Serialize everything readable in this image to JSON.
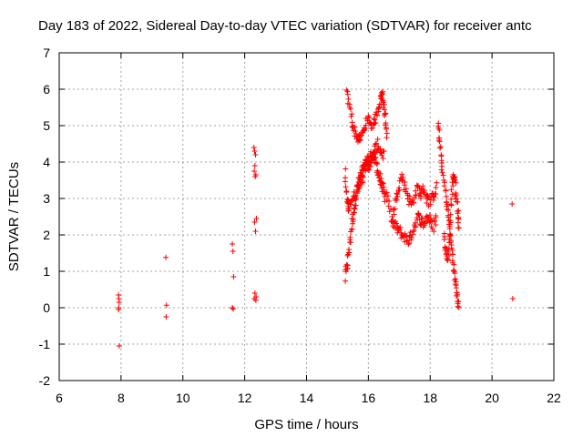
{
  "chart_data": {
    "type": "scatter",
    "title": "Day 183 of 2022, Sidereal Day-to-day VTEC variation (SDTVAR) for receiver antc",
    "xlabel": "GPS time / hours",
    "ylabel": "SDTVAR / TECUs",
    "xlim": [
      6,
      22
    ],
    "ylim": [
      -2,
      7
    ],
    "xticks": [
      "6",
      "8",
      "10",
      "12",
      "14",
      "16",
      "18",
      "20",
      "22"
    ],
    "yticks": [
      "-2",
      "-1",
      "0",
      "1",
      "2",
      "3",
      "4",
      "5",
      "6",
      "7"
    ],
    "grid": true,
    "marker": "plus",
    "color": "#ff0000",
    "series": [
      {
        "name": "SDTVAR",
        "clusters": [
          {
            "x": [
              7.92,
              7.93,
              7.94,
              7.93,
              7.92,
              7.94
            ],
            "y": [
              0.35,
              0.25,
              0.15,
              0.0,
              -0.05,
              -1.05
            ]
          },
          {
            "x": [
              9.45,
              9.47,
              9.46
            ],
            "y": [
              1.38,
              0.07,
              -0.25
            ]
          },
          {
            "x": [
              11.6,
              11.62,
              11.64,
              11.6,
              11.63
            ],
            "y": [
              1.75,
              1.55,
              0.85,
              0.0,
              -0.03
            ]
          },
          {
            "x": [
              12.3,
              12.32,
              12.35,
              12.33,
              12.31,
              12.36,
              12.34,
              12.38,
              12.32,
              12.35,
              12.33,
              12.37,
              12.31,
              12.36
            ],
            "y": [
              4.4,
              4.3,
              4.2,
              3.9,
              3.75,
              3.65,
              3.6,
              2.45,
              2.35,
              2.1,
              0.4,
              0.3,
              0.25,
              0.2
            ]
          },
          {
            "path": [
              [
                15.25,
                0.8
              ],
              [
                15.35,
                1.4
              ],
              [
                15.45,
                2.2
              ],
              [
                15.55,
                2.8
              ],
              [
                15.65,
                3.3
              ],
              [
                15.75,
                3.6
              ],
              [
                15.85,
                3.8
              ],
              [
                15.95,
                4.0
              ],
              [
                16.05,
                4.1
              ],
              [
                16.15,
                4.2
              ],
              [
                16.25,
                4.0
              ],
              [
                16.35,
                3.6
              ],
              [
                16.45,
                3.3
              ],
              [
                16.55,
                3.0
              ]
            ],
            "jitter": 0.18,
            "n": 120
          },
          {
            "path": [
              [
                15.3,
                5.9
              ],
              [
                15.4,
                5.5
              ],
              [
                15.5,
                5.0
              ],
              [
                15.6,
                4.75
              ],
              [
                15.7,
                4.6
              ],
              [
                15.8,
                4.75
              ],
              [
                15.9,
                5.0
              ],
              [
                16.0,
                5.2
              ],
              [
                16.1,
                5.0
              ],
              [
                16.2,
                5.1
              ],
              [
                16.3,
                5.4
              ],
              [
                16.4,
                5.7
              ],
              [
                16.45,
                5.9
              ],
              [
                16.5,
                5.6
              ],
              [
                16.55,
                5.2
              ],
              [
                16.6,
                4.7
              ]
            ],
            "jitter": 0.12,
            "n": 90
          },
          {
            "path": [
              [
                15.25,
                3.7
              ],
              [
                15.3,
                3.0
              ],
              [
                15.35,
                2.7
              ],
              [
                15.4,
                2.9
              ],
              [
                15.5,
                3.0
              ],
              [
                15.6,
                3.2
              ],
              [
                15.7,
                3.4
              ],
              [
                15.8,
                3.6
              ],
              [
                15.9,
                3.8
              ],
              [
                16.0,
                3.9
              ],
              [
                16.1,
                4.0
              ],
              [
                16.2,
                4.3
              ],
              [
                16.3,
                4.5
              ],
              [
                16.4,
                4.3
              ],
              [
                16.5,
                4.2
              ]
            ],
            "jitter": 0.15,
            "n": 80
          },
          {
            "path": [
              [
                16.6,
                3.1
              ],
              [
                16.7,
                2.6
              ],
              [
                16.8,
                2.3
              ],
              [
                16.9,
                2.2
              ],
              [
                17.0,
                2.1
              ],
              [
                17.1,
                2.0
              ],
              [
                17.2,
                1.9
              ],
              [
                17.3,
                1.85
              ],
              [
                17.4,
                2.0
              ],
              [
                17.5,
                2.3
              ],
              [
                17.6,
                2.5
              ],
              [
                17.7,
                2.4
              ],
              [
                17.8,
                2.3
              ],
              [
                17.9,
                2.5
              ],
              [
                18.0,
                2.4
              ],
              [
                18.1,
                2.2
              ],
              [
                18.2,
                2.5
              ]
            ],
            "jitter": 0.15,
            "n": 90
          },
          {
            "path": [
              [
                16.8,
                2.6
              ],
              [
                16.9,
                3.0
              ],
              [
                17.0,
                3.4
              ],
              [
                17.1,
                3.6
              ],
              [
                17.2,
                3.3
              ],
              [
                17.3,
                3.0
              ],
              [
                17.4,
                2.8
              ],
              [
                17.5,
                3.1
              ],
              [
                17.6,
                3.3
              ],
              [
                17.7,
                3.1
              ],
              [
                17.8,
                3.3
              ],
              [
                17.9,
                3.0
              ],
              [
                18.0,
                2.9
              ],
              [
                18.1,
                3.1
              ],
              [
                18.2,
                3.3
              ]
            ],
            "jitter": 0.15,
            "n": 80
          },
          {
            "path": [
              [
                18.25,
                5.1
              ],
              [
                18.3,
                4.6
              ],
              [
                18.35,
                4.2
              ],
              [
                18.4,
                3.7
              ],
              [
                18.5,
                3.2
              ],
              [
                18.55,
                2.8
              ],
              [
                18.6,
                2.4
              ],
              [
                18.65,
                2.0
              ],
              [
                18.7,
                1.6
              ],
              [
                18.75,
                1.2
              ],
              [
                18.8,
                0.8
              ],
              [
                18.85,
                0.5
              ],
              [
                18.9,
                0.2
              ],
              [
                18.92,
                0.05
              ]
            ],
            "jitter": 0.1,
            "n": 70
          },
          {
            "path": [
              [
                18.45,
                2.0
              ],
              [
                18.5,
                1.6
              ],
              [
                18.55,
                1.3
              ],
              [
                18.6,
                1.6
              ],
              [
                18.65,
                2.4
              ],
              [
                18.7,
                3.2
              ],
              [
                18.75,
                3.7
              ],
              [
                18.8,
                3.5
              ],
              [
                18.85,
                3.0
              ],
              [
                18.9,
                2.6
              ],
              [
                18.93,
                2.2
              ]
            ],
            "jitter": 0.15,
            "n": 60
          },
          {
            "x": [
              20.65,
              20.67
            ],
            "y": [
              2.85,
              0.25
            ]
          }
        ]
      }
    ]
  }
}
